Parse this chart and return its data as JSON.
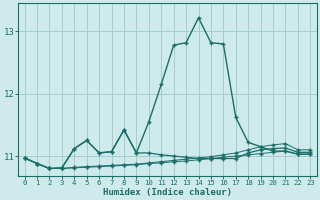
{
  "xlabel": "Humidex (Indice chaleur)",
  "bg_color": "#ceeaea",
  "grid_color": "#9ec8c8",
  "line_color": "#1a6e6a",
  "x": [
    0,
    1,
    2,
    3,
    4,
    5,
    6,
    7,
    8,
    9,
    10,
    11,
    12,
    13,
    14,
    15,
    16,
    17,
    18,
    19,
    20,
    21,
    22,
    23
  ],
  "series_main": [
    10.97,
    10.88,
    10.8,
    10.81,
    11.12,
    11.25,
    11.05,
    11.07,
    11.42,
    11.05,
    11.55,
    12.15,
    12.78,
    12.82,
    13.22,
    12.82,
    12.8,
    11.62,
    11.22,
    11.15,
    11.08,
    11.08,
    11.03,
    11.03
  ],
  "series_mid": [
    10.97,
    10.88,
    10.8,
    10.81,
    11.12,
    11.25,
    11.05,
    11.07,
    11.42,
    11.05,
    11.05,
    11.02,
    11.0,
    10.98,
    10.96,
    10.96,
    10.96,
    10.96,
    11.05,
    11.1,
    11.12,
    11.13,
    11.06,
    11.06
  ],
  "series_lo1": [
    10.97,
    10.88,
    10.8,
    10.8,
    10.82,
    10.83,
    10.84,
    10.85,
    10.86,
    10.87,
    10.89,
    10.91,
    10.93,
    10.95,
    10.97,
    10.99,
    11.02,
    11.05,
    11.1,
    11.15,
    11.18,
    11.2,
    11.1,
    11.1
  ],
  "series_lo2": [
    10.97,
    10.88,
    10.8,
    10.8,
    10.81,
    10.82,
    10.83,
    10.84,
    10.85,
    10.86,
    10.88,
    10.89,
    10.91,
    10.92,
    10.94,
    10.96,
    10.98,
    11.0,
    11.02,
    11.04,
    11.06,
    11.08,
    11.03,
    11.03
  ],
  "xlim": [
    -0.5,
    23.5
  ],
  "ylim": [
    10.68,
    13.45
  ],
  "yticks": [
    11,
    12,
    13
  ],
  "xticks": [
    0,
    1,
    2,
    3,
    4,
    5,
    6,
    7,
    8,
    9,
    10,
    11,
    12,
    13,
    14,
    15,
    16,
    17,
    18,
    19,
    20,
    21,
    22,
    23
  ]
}
